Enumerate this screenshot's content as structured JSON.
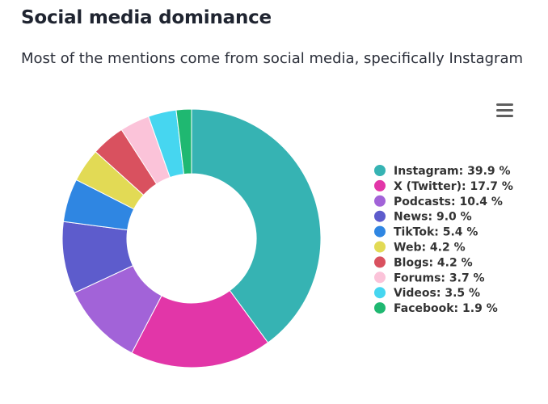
{
  "chart_data": {
    "type": "pie",
    "donut": true,
    "title": "Social media dominance",
    "subtitle": "Most of the mentions come from social media, specifically Instagram",
    "legend_position": "right",
    "unit": "%",
    "slices": [
      {
        "label": "Instagram",
        "value": 39.9,
        "color": "#36b3b3"
      },
      {
        "label": "X (Twitter)",
        "value": 17.7,
        "color": "#e236a8"
      },
      {
        "label": "Podcasts",
        "value": 10.4,
        "color": "#a263d8"
      },
      {
        "label": "News",
        "value": 9.0,
        "color": "#5d5ccc"
      },
      {
        "label": "TikTok",
        "value": 5.4,
        "color": "#2f86e2"
      },
      {
        "label": "Web",
        "value": 4.2,
        "color": "#e2da55"
      },
      {
        "label": "Blogs",
        "value": 4.2,
        "color": "#d9515f"
      },
      {
        "label": "Forums",
        "value": 3.7,
        "color": "#fbc3d9"
      },
      {
        "label": "Videos",
        "value": 3.5,
        "color": "#46d6f0"
      },
      {
        "label": "Facebook",
        "value": 1.9,
        "color": "#1fb871"
      }
    ]
  },
  "menu": {
    "icon": "hamburger-menu-icon"
  }
}
